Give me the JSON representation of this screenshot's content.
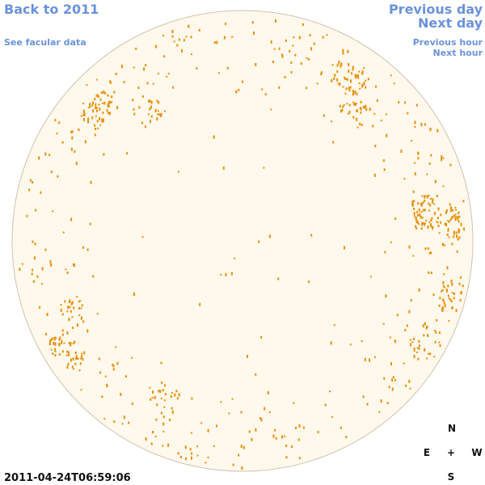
{
  "nav": {
    "back": "Back to 2011",
    "facular": "See facular data",
    "previous_day": "Previous day",
    "next_day": "Next day",
    "previous_hour": "Previous hour",
    "next_hour": "Next hour"
  },
  "timestamp": "2011-04-24T06:59:06",
  "compass": {
    "north": "N",
    "east": "E",
    "center": "+",
    "west": "W",
    "south": "S"
  }
}
